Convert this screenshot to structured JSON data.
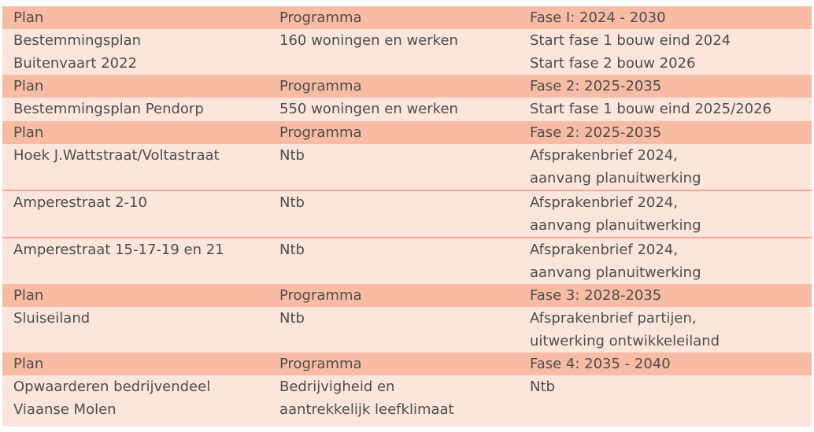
{
  "colors": {
    "header-bg": "#f8bba3",
    "row-bg": "#fce5db",
    "divider": "#f3aa90",
    "text": "#4d4d4d",
    "page-bg": "#ffffff"
  },
  "table": {
    "rows": [
      {
        "type": "header",
        "plan": "Plan",
        "programma": "Programma",
        "fase": "Fase I: 2024 - 2030"
      },
      {
        "type": "data",
        "plan": "Bestemmingsplan\nBuitenvaart 2022",
        "programma": "160 woningen en werken",
        "fase": "Start fase 1 bouw eind 2024\nStart fase 2 bouw 2026"
      },
      {
        "type": "header",
        "plan": "Plan",
        "programma": "Programma",
        "fase": "Fase 2: 2025-2035"
      },
      {
        "type": "data",
        "plan": "Bestemmingsplan Pendorp",
        "programma": "550 woningen en werken",
        "fase": "Start fase 1 bouw eind 2025/2026"
      },
      {
        "type": "header",
        "plan": "Plan",
        "programma": "Programma",
        "fase": "Fase 2: 2025-2035"
      },
      {
        "type": "data",
        "plan": "Hoek J.Wattstraat/Voltastraat",
        "programma": "Ntb",
        "fase": "Afsprakenbrief 2024,\naanvang planuitwerking"
      },
      {
        "type": "data",
        "plan": "Amperestraat 2-10",
        "programma": "Ntb",
        "fase": "Afsprakenbrief 2024,\naanvang planuitwerking"
      },
      {
        "type": "data",
        "plan": "Amperestraat 15-17-19 en 21",
        "programma": "Ntb",
        "fase": "Afsprakenbrief 2024,\naanvang planuitwerking"
      },
      {
        "type": "header",
        "plan": "Plan",
        "programma": "Programma",
        "fase": "Fase 3: 2028-2035"
      },
      {
        "type": "data",
        "plan": "Sluiseiland",
        "programma": "Ntb",
        "fase": "Afsprakenbrief partijen,\nuitwerking ontwikkeleiland"
      },
      {
        "type": "header",
        "plan": "Plan",
        "programma": "Programma",
        "fase": "Fase 4: 2035 - 2040"
      },
      {
        "type": "data",
        "plan": "Opwaarderen bedrijvendeel\nViaanse Molen",
        "programma": "Bedrijvigheid en\naantrekkelijk leefklimaat",
        "fase": "Ntb"
      }
    ]
  }
}
